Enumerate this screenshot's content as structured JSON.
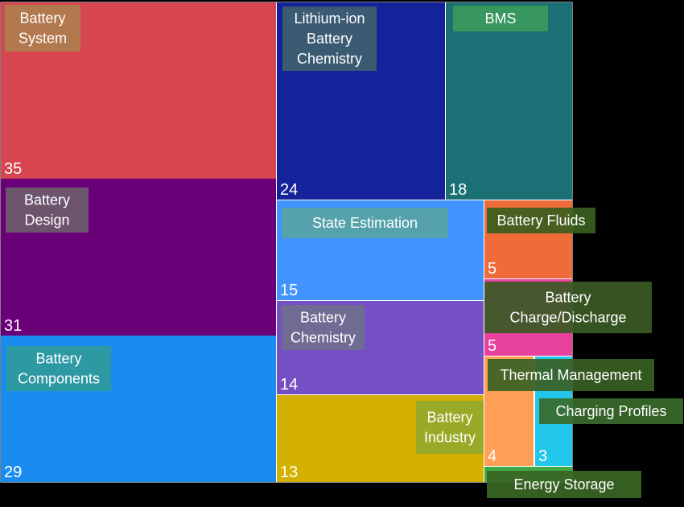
{
  "chart_data": {
    "type": "treemap",
    "title": "",
    "items": [
      {
        "label": "Battery System",
        "value": 35,
        "value_label": "35",
        "color": "#d64550",
        "label_lines": [
          "Battery",
          "System"
        ],
        "label_bg": "#b07e4e"
      },
      {
        "label": "Battery Design",
        "value": 31,
        "value_label": "31",
        "color": "#6a0078",
        "label_lines": [
          "Battery",
          "Design"
        ],
        "label_bg": "#6e5b6d"
      },
      {
        "label": "Battery Components",
        "value": 29,
        "value_label": "29",
        "color": "#1a8cf0",
        "label_lines": [
          "Battery",
          "Components"
        ],
        "label_bg": "#2f9a9c"
      },
      {
        "label": "Lithium-ion Battery Chemistry",
        "value": 24,
        "value_label": "24",
        "color": "#14239a",
        "label_lines": [
          "Lithium-ion",
          "Battery",
          "Chemistry"
        ],
        "label_bg": "#3f6170"
      },
      {
        "label": "BMS",
        "value": 18,
        "value_label": "18",
        "color": "#1b7075",
        "label_lines": [
          "BMS"
        ],
        "label_bg": "#3a9a5c"
      },
      {
        "label": "State Estimation",
        "value": 15,
        "value_label": "15",
        "color": "#4193ff",
        "label_lines": [
          "State Estimation"
        ],
        "label_bg": "#58a3a5"
      },
      {
        "label": "Battery Chemistry",
        "value": 14,
        "value_label": "14",
        "color": "#7550c5",
        "label_lines": [
          "Battery",
          "Chemistry"
        ],
        "label_bg": "#6f6e8e"
      },
      {
        "label": "Battery Industry",
        "value": 13,
        "value_label": "13",
        "color": "#d4b000",
        "label_lines": [
          "Battery",
          "Industry"
        ],
        "label_bg": "#93a92a"
      },
      {
        "label": "Battery Fluids",
        "value": 5,
        "value_label": "5",
        "color": "#ef6c3a",
        "label_lines": [
          "Battery Fluids"
        ],
        "label_bg": "#3b5e1e"
      },
      {
        "label": "Battery Charge/Discharge",
        "value": 5,
        "value_label": "5",
        "color": "#e7429e",
        "label_lines": [
          "Battery",
          "Charge/Discharge"
        ],
        "label_bg": "#3b5a25"
      },
      {
        "label": "Thermal Management",
        "value": 4,
        "value_label": "4",
        "color": "#ff9f55",
        "label_lines": [
          "Thermal Management"
        ],
        "label_bg": "#3a6024"
      },
      {
        "label": "Charging Profiles",
        "value": 3,
        "value_label": "3",
        "color": "#22c7ec",
        "label_lines": [
          "Charging Profiles"
        ],
        "label_bg": "#3a6a2a"
      },
      {
        "label": "Energy Storage",
        "value": 1,
        "value_label": "",
        "color": "#3fa845",
        "label_lines": [
          "Energy Storage"
        ],
        "label_bg": "#3a6624"
      }
    ]
  }
}
